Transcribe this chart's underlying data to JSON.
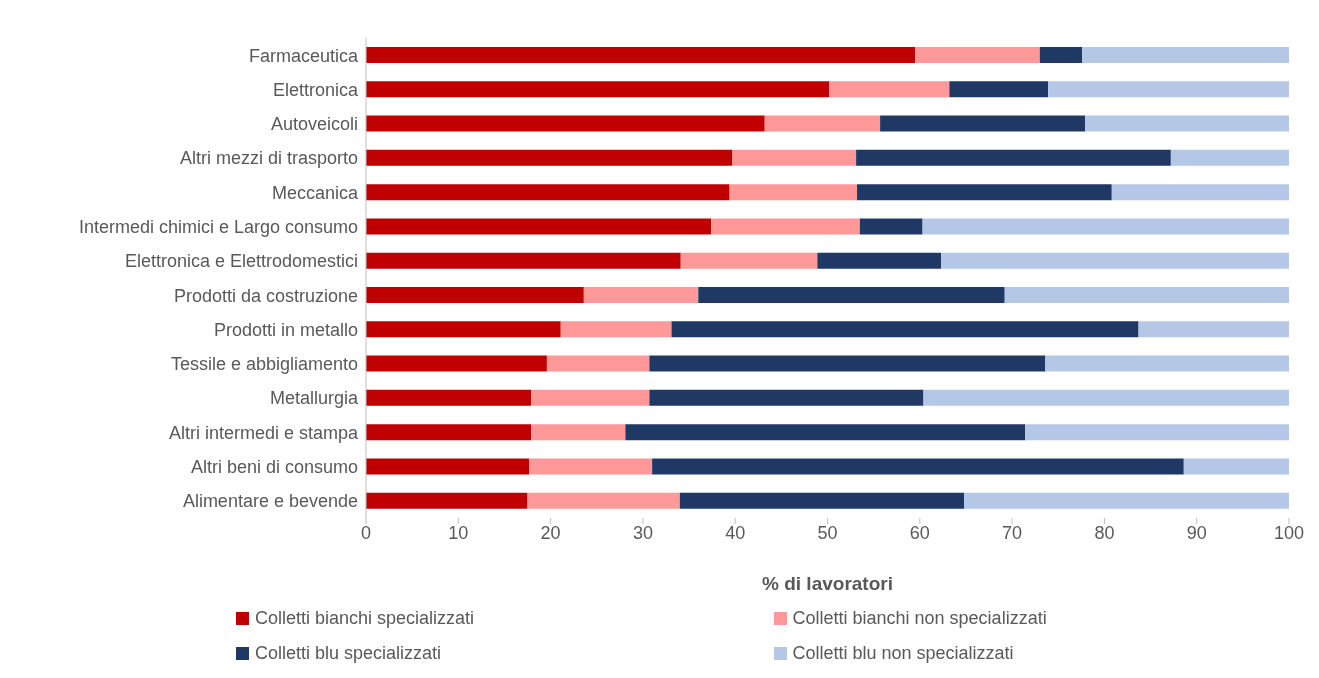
{
  "chart_data": {
    "type": "bar",
    "orientation": "horizontal",
    "stacked": true,
    "xlabel": "% di lavoratori",
    "categories": [
      "Farmaceutica",
      "Elettronica",
      "Autoveicoli",
      "Altri mezzi di trasporto",
      "Meccanica",
      "Intermedi chimici e Largo consumo",
      "Elettronica e Elettrodomestici",
      "Prodotti da costruzione",
      "Prodotti in metallo",
      "Tessile e abbigliamento",
      "Metallurgia",
      "Altri intermedi e stampa",
      "Altri beni di consumo",
      "Alimentare e bevende"
    ],
    "series": [
      {
        "name": "Colletti bianchi specializzati",
        "color": "#c00000",
        "values": [
          59.5,
          50.2,
          43.2,
          39.7,
          39.4,
          37.4,
          34.1,
          23.6,
          21.1,
          19.6,
          17.9,
          17.9,
          17.7,
          17.5
        ]
      },
      {
        "name": "Colletti bianchi non specializzati",
        "color": "#ff9999",
        "values": [
          13.5,
          13.0,
          12.5,
          13.4,
          13.8,
          16.1,
          14.8,
          12.4,
          12.0,
          11.1,
          12.8,
          10.2,
          13.3,
          16.5
        ]
      },
      {
        "name": "Colletti blu specializzati",
        "color": "#1f3864",
        "values": [
          4.6,
          10.7,
          22.2,
          34.1,
          27.6,
          6.8,
          13.4,
          33.2,
          50.6,
          42.9,
          29.7,
          43.3,
          57.6,
          30.8
        ]
      },
      {
        "name": "Colletti blu non specializzati",
        "color": "#b4c7e7",
        "values": [
          22.4,
          26.1,
          22.1,
          12.8,
          19.2,
          39.7,
          37.7,
          30.8,
          16.3,
          26.4,
          39.6,
          28.6,
          11.4,
          35.2
        ]
      }
    ],
    "xlim": [
      0,
      100
    ],
    "xticks": [
      0,
      10,
      20,
      30,
      40,
      50,
      60,
      70,
      80,
      90,
      100
    ],
    "legend": "bottom"
  }
}
